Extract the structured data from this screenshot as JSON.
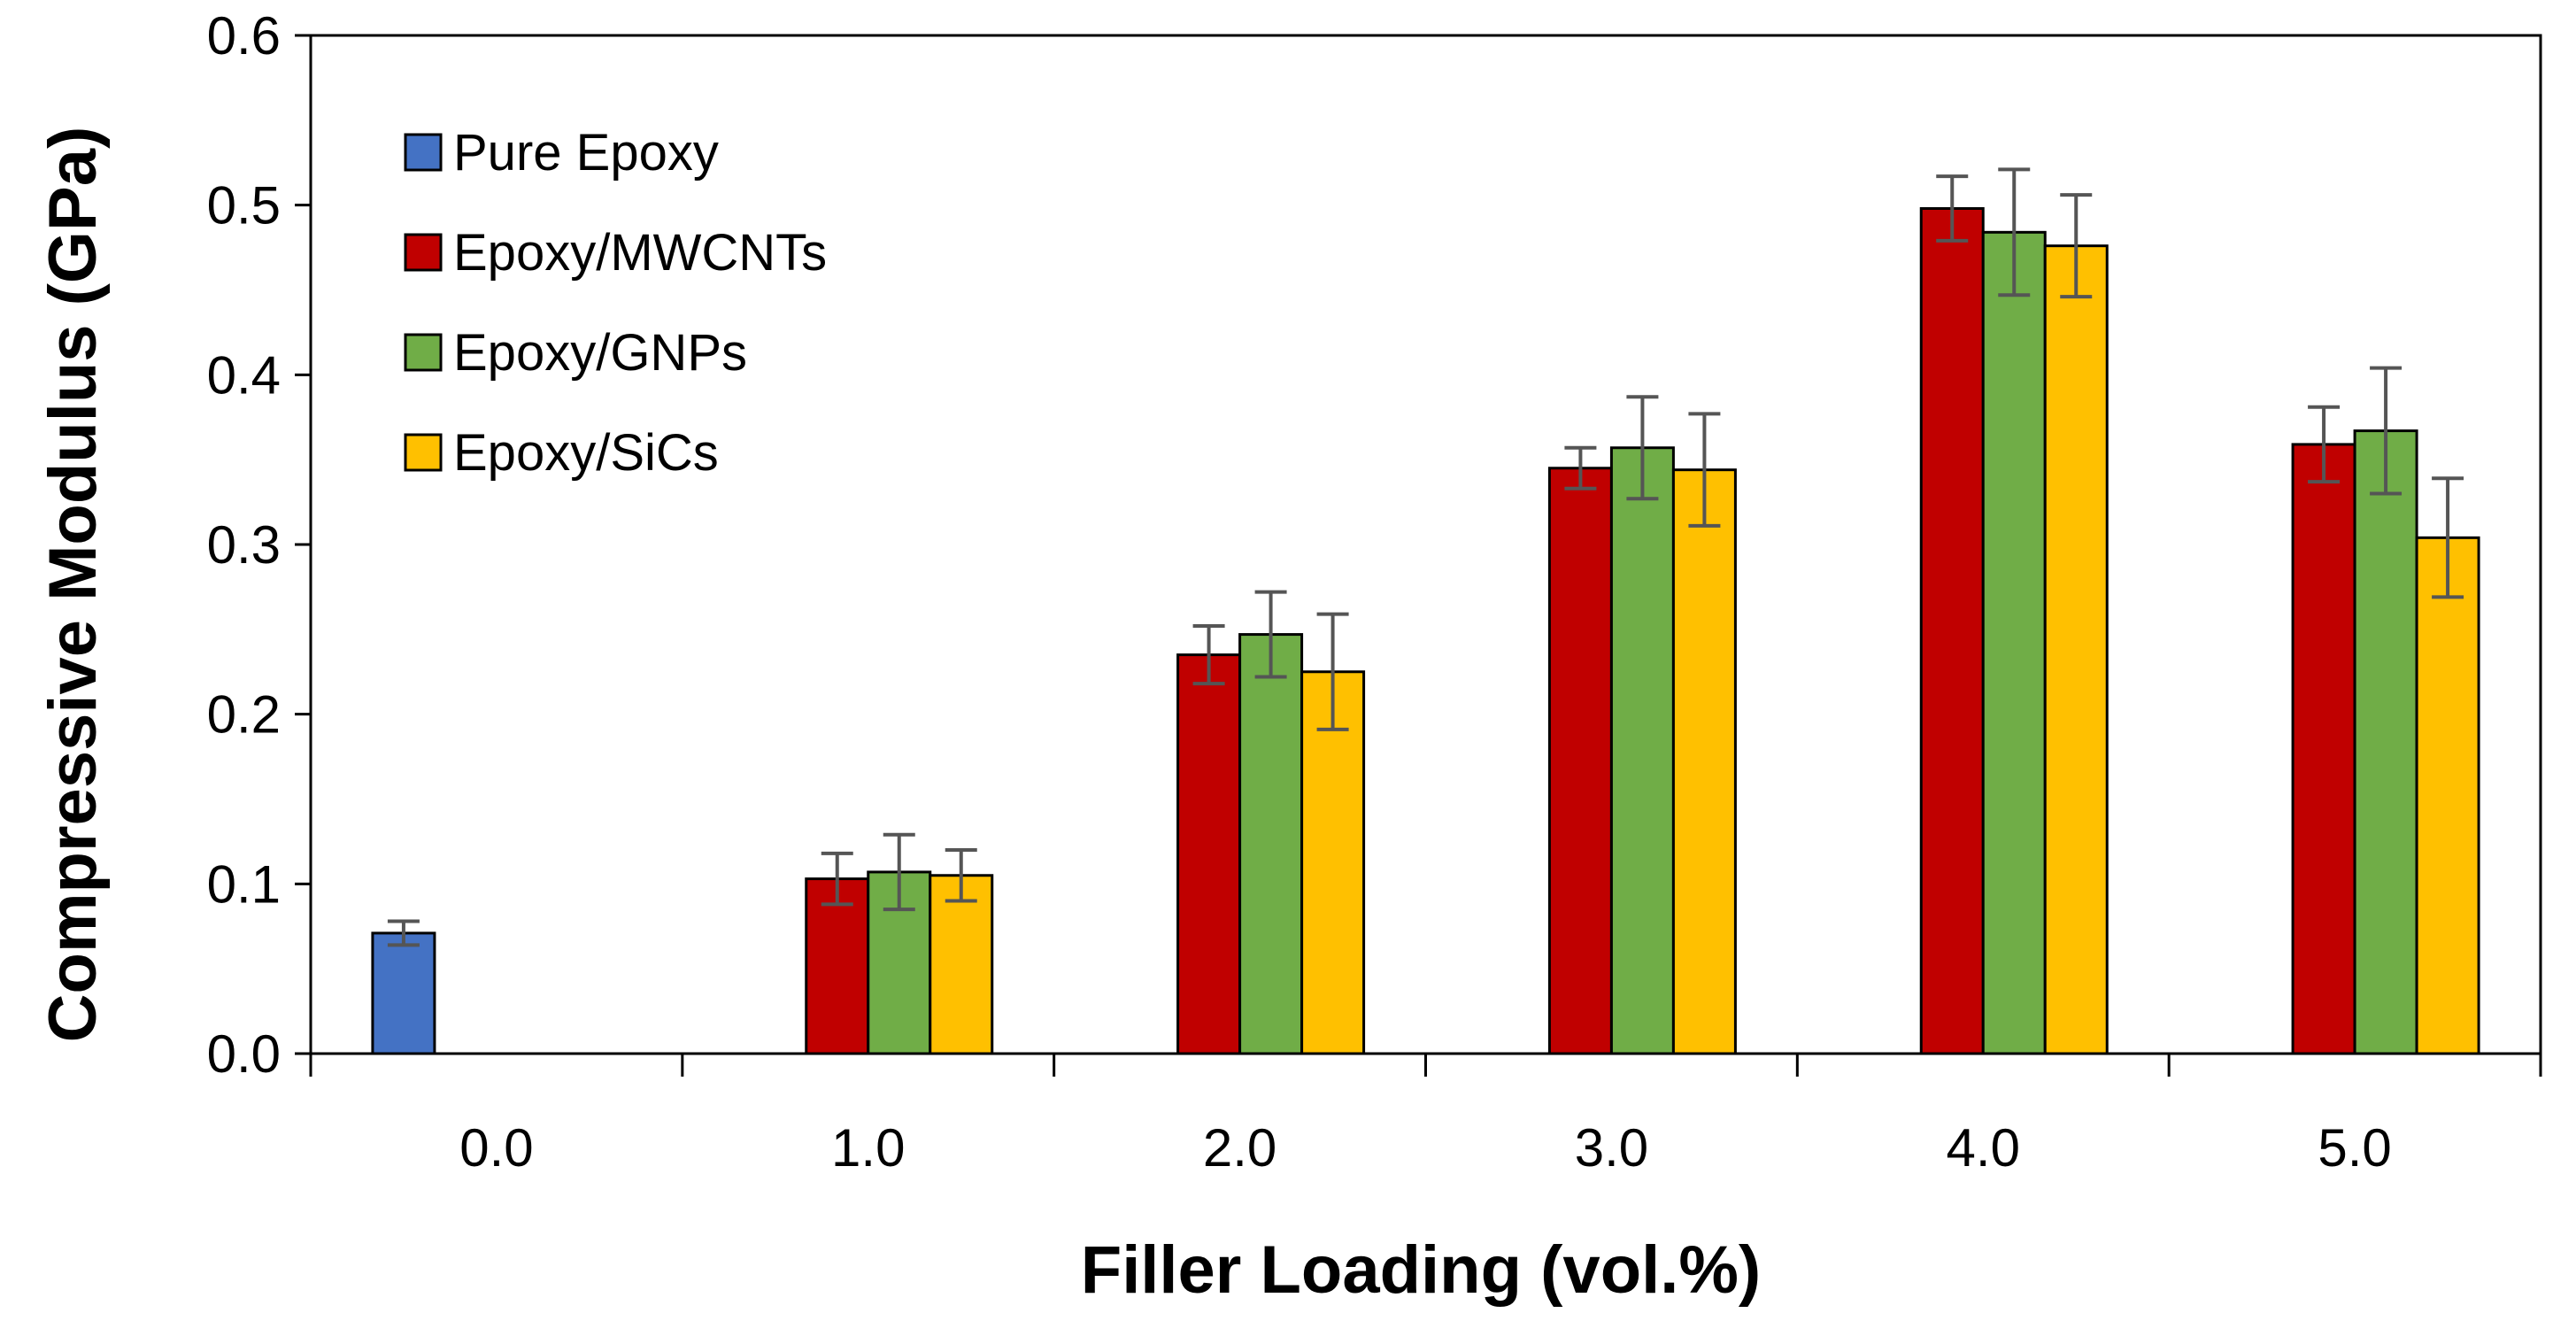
{
  "chart_data": {
    "type": "bar",
    "title": "",
    "xlabel": "Filler Loading (vol.%)",
    "ylabel": "Compressive Modulus (GPa)",
    "ylim": [
      0,
      0.6
    ],
    "yticks": [
      "0.0",
      "0.1",
      "0.2",
      "0.3",
      "0.4",
      "0.5",
      "0.6"
    ],
    "categories": [
      "0.0",
      "1.0",
      "2.0",
      "3.0",
      "4.0",
      "5.0"
    ],
    "legend_position": "top-left",
    "series": [
      {
        "name": "Pure Epoxy",
        "color": "#4472C4",
        "values": [
          0.071,
          null,
          null,
          null,
          null,
          null
        ],
        "errors": [
          0.007,
          null,
          null,
          null,
          null,
          null
        ]
      },
      {
        "name": "Epoxy/MWCNTs",
        "color": "#C00000",
        "values": [
          null,
          0.103,
          0.235,
          0.345,
          0.498,
          0.359
        ],
        "errors": [
          null,
          0.015,
          0.017,
          0.012,
          0.019,
          0.022
        ]
      },
      {
        "name": "Epoxy/GNPs",
        "color": "#70AD47",
        "values": [
          null,
          0.107,
          0.247,
          0.357,
          0.484,
          0.367
        ],
        "errors": [
          null,
          0.022,
          0.025,
          0.03,
          0.037,
          0.037
        ]
      },
      {
        "name": "Epoxy/SiCs",
        "color": "#FFC000",
        "values": [
          null,
          0.105,
          0.225,
          0.344,
          0.476,
          0.304
        ],
        "errors": [
          null,
          0.015,
          0.034,
          0.033,
          0.03,
          0.035
        ]
      }
    ]
  }
}
